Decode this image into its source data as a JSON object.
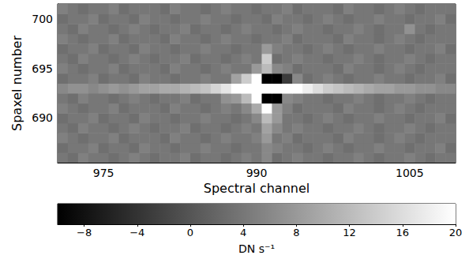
{
  "chart_data": {
    "type": "heatmap",
    "x_label": "Spectral channel",
    "y_label": "Spaxel number",
    "x": [
      971,
      972,
      973,
      974,
      975,
      976,
      977,
      978,
      979,
      980,
      981,
      982,
      983,
      984,
      985,
      986,
      987,
      988,
      989,
      990,
      991,
      992,
      993,
      994,
      995,
      996,
      997,
      998,
      999,
      1000,
      1001,
      1002,
      1003,
      1004,
      1005,
      1006,
      1007,
      1008,
      1009
    ],
    "y": [
      686,
      687,
      688,
      689,
      690,
      691,
      692,
      693,
      694,
      695,
      696,
      697,
      698,
      699,
      700,
      701
    ],
    "cells": [
      [
        4,
        3,
        5,
        4,
        4,
        3,
        4,
        5,
        4,
        3,
        4,
        4,
        5,
        3,
        4,
        4,
        3,
        4,
        5,
        4,
        6,
        3,
        4,
        5,
        4,
        4,
        3,
        4,
        4,
        5,
        4,
        3,
        4,
        4,
        5,
        4,
        3,
        4,
        4
      ],
      [
        3,
        4,
        4,
        5,
        3,
        4,
        4,
        3,
        5,
        4,
        4,
        3,
        4,
        4,
        5,
        4,
        4,
        3,
        4,
        4,
        6,
        5,
        4,
        4,
        3,
        4,
        5,
        4,
        3,
        4,
        4,
        5,
        4,
        4,
        3,
        4,
        4,
        5,
        3
      ],
      [
        5,
        4,
        3,
        4,
        4,
        5,
        3,
        4,
        4,
        4,
        3,
        5,
        4,
        4,
        3,
        4,
        5,
        4,
        4,
        5,
        8,
        4,
        5,
        3,
        4,
        4,
        4,
        3,
        5,
        4,
        4,
        3,
        4,
        5,
        4,
        3,
        4,
        4,
        4
      ],
      [
        4,
        3,
        5,
        4,
        4,
        3,
        4,
        5,
        4,
        3,
        4,
        4,
        5,
        3,
        4,
        4,
        3,
        4,
        5,
        4,
        9,
        6,
        4,
        5,
        4,
        4,
        3,
        4,
        4,
        5,
        4,
        3,
        4,
        4,
        5,
        4,
        3,
        4,
        4
      ],
      [
        3,
        4,
        4,
        5,
        3,
        4,
        4,
        3,
        5,
        4,
        4,
        3,
        4,
        4,
        5,
        4,
        4,
        3,
        4,
        6,
        12,
        8,
        4,
        4,
        3,
        4,
        5,
        4,
        3,
        4,
        4,
        5,
        4,
        4,
        3,
        4,
        4,
        5,
        3
      ],
      [
        5,
        4,
        3,
        4,
        4,
        5,
        3,
        4,
        4,
        4,
        3,
        5,
        4,
        4,
        3,
        4,
        5,
        4,
        6,
        10,
        20,
        8,
        5,
        3,
        4,
        4,
        4,
        3,
        5,
        4,
        4,
        3,
        4,
        5,
        4,
        3,
        4,
        4,
        4
      ],
      [
        4,
        3,
        5,
        4,
        4,
        3,
        4,
        5,
        4,
        3,
        4,
        4,
        5,
        3,
        4,
        4,
        7,
        8,
        12,
        20,
        -10,
        -10,
        6,
        5,
        4,
        4,
        3,
        4,
        4,
        5,
        4,
        3,
        4,
        4,
        5,
        4,
        3,
        4,
        4
      ],
      [
        6,
        7,
        7,
        6,
        7,
        8,
        7,
        8,
        9,
        9,
        10,
        10,
        11,
        12,
        13,
        15,
        17,
        20,
        20,
        20,
        20,
        20,
        20,
        20,
        18,
        16,
        14,
        13,
        12,
        11,
        10,
        9,
        9,
        8,
        8,
        7,
        7,
        6,
        6
      ],
      [
        3,
        4,
        4,
        5,
        3,
        4,
        4,
        3,
        5,
        4,
        4,
        3,
        4,
        4,
        5,
        4,
        4,
        9,
        14,
        20,
        -10,
        -10,
        -3,
        6,
        3,
        4,
        5,
        4,
        3,
        4,
        4,
        5,
        4,
        4,
        3,
        4,
        4,
        5,
        3
      ],
      [
        5,
        4,
        3,
        4,
        4,
        5,
        3,
        4,
        4,
        4,
        3,
        5,
        4,
        4,
        3,
        4,
        5,
        4,
        4,
        8,
        12,
        6,
        5,
        3,
        4,
        4,
        4,
        3,
        5,
        4,
        4,
        3,
        4,
        5,
        4,
        3,
        4,
        4,
        4
      ],
      [
        4,
        3,
        5,
        4,
        4,
        3,
        4,
        5,
        4,
        3,
        4,
        4,
        5,
        3,
        4,
        4,
        3,
        4,
        5,
        4,
        14,
        3,
        4,
        5,
        4,
        4,
        3,
        4,
        4,
        5,
        4,
        3,
        4,
        4,
        5,
        4,
        3,
        4,
        4
      ],
      [
        3,
        4,
        4,
        5,
        3,
        4,
        4,
        3,
        5,
        4,
        4,
        3,
        4,
        4,
        5,
        4,
        4,
        3,
        4,
        4,
        8,
        5,
        4,
        4,
        3,
        4,
        5,
        4,
        3,
        4,
        4,
        5,
        4,
        4,
        3,
        4,
        4,
        5,
        3
      ],
      [
        5,
        4,
        3,
        4,
        4,
        5,
        3,
        4,
        4,
        4,
        3,
        5,
        4,
        4,
        3,
        4,
        5,
        4,
        4,
        3,
        4,
        4,
        5,
        3,
        4,
        4,
        4,
        3,
        5,
        4,
        4,
        3,
        4,
        5,
        4,
        3,
        4,
        4,
        4
      ],
      [
        4,
        3,
        5,
        4,
        4,
        3,
        4,
        5,
        4,
        3,
        4,
        4,
        5,
        3,
        4,
        4,
        3,
        4,
        5,
        4,
        4,
        3,
        4,
        5,
        4,
        4,
        3,
        4,
        4,
        5,
        4,
        3,
        4,
        4,
        7,
        4,
        3,
        4,
        4
      ],
      [
        3,
        4,
        4,
        5,
        3,
        4,
        4,
        3,
        5,
        4,
        4,
        3,
        4,
        4,
        5,
        4,
        4,
        3,
        4,
        4,
        3,
        5,
        4,
        4,
        3,
        4,
        5,
        4,
        3,
        4,
        4,
        5,
        4,
        4,
        3,
        4,
        4,
        5,
        3
      ],
      [
        5,
        4,
        3,
        4,
        4,
        5,
        3,
        4,
        4,
        4,
        3,
        5,
        4,
        4,
        3,
        4,
        5,
        4,
        4,
        3,
        4,
        4,
        5,
        3,
        4,
        4,
        4,
        3,
        5,
        4,
        4,
        3,
        4,
        5,
        4,
        3,
        4,
        4,
        4
      ]
    ],
    "xlim": [
      970.5,
      1009.5
    ],
    "ylim": [
      685.5,
      701.5
    ],
    "xticks": [
      975,
      990,
      1005
    ],
    "yticks": [
      690,
      695,
      700
    ],
    "colorbar_label": "DN s⁻¹",
    "colorbar_lim": [
      -10,
      20
    ],
    "colorbar_ticks": [
      {
        "value": -8,
        "label": "−8"
      },
      {
        "value": -4,
        "label": "−4"
      },
      0,
      4,
      8,
      12,
      16,
      20
    ]
  }
}
